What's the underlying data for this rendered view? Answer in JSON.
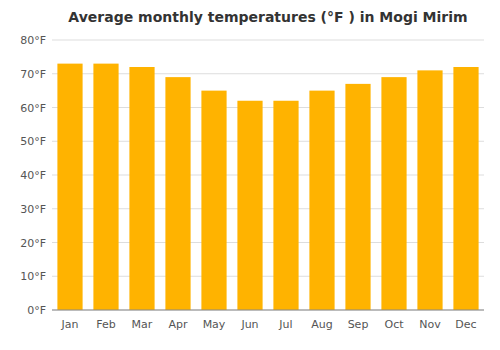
{
  "chart_data": {
    "type": "bar",
    "title": "Average monthly temperatures (°F ) in Mogi Mirim",
    "categories": [
      "Jan",
      "Feb",
      "Mar",
      "Apr",
      "May",
      "Jun",
      "Jul",
      "Aug",
      "Sep",
      "Oct",
      "Nov",
      "Dec"
    ],
    "values": [
      73,
      73,
      72,
      69,
      65,
      62,
      62,
      65,
      67,
      69,
      71,
      72
    ],
    "color": "#FFB300",
    "ylim": [
      0,
      80
    ],
    "yticks": [
      {
        "value": 0,
        "label": "0°F"
      },
      {
        "value": 10,
        "label": "10°F"
      },
      {
        "value": 20,
        "label": "20°F"
      },
      {
        "value": 30,
        "label": "30°F"
      },
      {
        "value": 40,
        "label": "40°F"
      },
      {
        "value": 50,
        "label": "50°F"
      },
      {
        "value": 60,
        "label": "60°F"
      },
      {
        "value": 70,
        "label": "70°F"
      },
      {
        "value": 80,
        "label": "80°F"
      }
    ],
    "grid": true
  }
}
